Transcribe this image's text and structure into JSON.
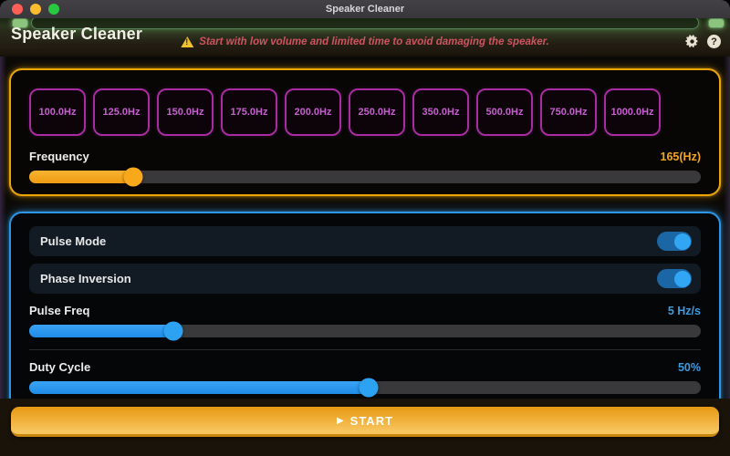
{
  "window": {
    "titlebar_title": "Speaker Cleaner"
  },
  "header": {
    "app_title": "Speaker Cleaner",
    "warning_text": "Start with low volume and limited time to avoid damaging the speaker."
  },
  "frequency_panel": {
    "presets": [
      "100.0Hz",
      "125.0Hz",
      "150.0Hz",
      "175.0Hz",
      "200.0Hz",
      "250.0Hz",
      "350.0Hz",
      "500.0Hz",
      "750.0Hz",
      "1000.0Hz"
    ],
    "slider": {
      "label": "Frequency",
      "value": "165(Hz)",
      "percent": 15.5
    }
  },
  "controls_panel": {
    "toggles": [
      {
        "label": "Pulse Mode",
        "state": "on"
      },
      {
        "label": "Phase Inversion",
        "state": "on"
      }
    ],
    "sliders": [
      {
        "label": "Pulse Freq",
        "value": "5 Hz/s",
        "percent": 21.5
      },
      {
        "label": "Duty Cycle",
        "value": "50%",
        "percent": 50.5
      }
    ]
  },
  "footer": {
    "play_icon": "▶",
    "start_label": "START"
  },
  "colors": {
    "accent_yellow": "#f2a71e",
    "accent_blue": "#2196f3",
    "accent_magenta": "#c13db8",
    "accent_green": "#8cc47e",
    "warning_red": "#cd5460"
  }
}
